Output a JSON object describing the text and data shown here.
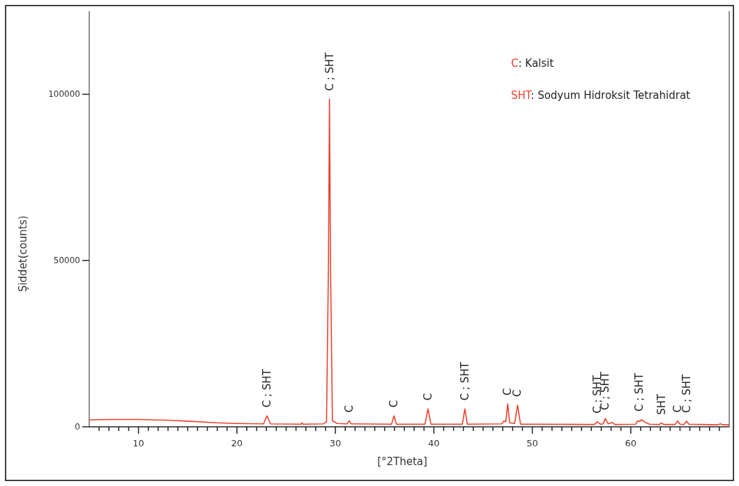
{
  "chart_data": {
    "type": "line",
    "xlabel": "[°2Theta]",
    "ylabel": "Şiddet(counts)",
    "xlim": [
      5,
      70
    ],
    "ylim": [
      0,
      125000
    ],
    "xticks": [
      {
        "value": 6,
        "label": null
      },
      {
        "value": 7,
        "label": null
      },
      {
        "value": 8,
        "label": null
      },
      {
        "value": 9,
        "label": null
      },
      10,
      {
        "value": 11,
        "label": null
      },
      {
        "value": 12,
        "label": null
      },
      {
        "value": 13,
        "label": null
      },
      {
        "value": 14,
        "label": null
      },
      {
        "value": 15,
        "label": null
      },
      {
        "value": 16,
        "label": null
      },
      {
        "value": 17,
        "label": null
      },
      {
        "value": 18,
        "label": null
      },
      {
        "value": 19,
        "label": null
      },
      20,
      {
        "value": 21,
        "label": null
      },
      {
        "value": 22,
        "label": null
      },
      {
        "value": 23,
        "label": null
      },
      {
        "value": 24,
        "label": null
      },
      {
        "value": 25,
        "label": null
      },
      {
        "value": 26,
        "label": null
      },
      {
        "value": 27,
        "label": null
      },
      {
        "value": 28,
        "label": null
      },
      {
        "value": 29,
        "label": null
      },
      30,
      {
        "value": 31,
        "label": null
      },
      {
        "value": 32,
        "label": null
      },
      {
        "value": 33,
        "label": null
      },
      {
        "value": 34,
        "label": null
      },
      {
        "value": 35,
        "label": null
      },
      {
        "value": 36,
        "label": null
      },
      {
        "value": 37,
        "label": null
      },
      {
        "value": 38,
        "label": null
      },
      {
        "value": 39,
        "label": null
      },
      40,
      {
        "value": 41,
        "label": null
      },
      {
        "value": 42,
        "label": null
      },
      {
        "value": 43,
        "label": null
      },
      {
        "value": 44,
        "label": null
      },
      {
        "value": 45,
        "label": null
      },
      {
        "value": 46,
        "label": null
      },
      {
        "value": 47,
        "label": null
      },
      {
        "value": 48,
        "label": null
      },
      {
        "value": 49,
        "label": null
      },
      50,
      {
        "value": 51,
        "label": null
      },
      {
        "value": 52,
        "label": null
      },
      {
        "value": 53,
        "label": null
      },
      {
        "value": 54,
        "label": null
      },
      {
        "value": 55,
        "label": null
      },
      {
        "value": 56,
        "label": null
      },
      {
        "value": 57,
        "label": null
      },
      {
        "value": 58,
        "label": null
      },
      {
        "value": 59,
        "label": null
      },
      60,
      {
        "value": 61,
        "label": null
      },
      {
        "value": 62,
        "label": null
      },
      {
        "value": 63,
        "label": null
      },
      {
        "value": 64,
        "label": null
      },
      {
        "value": 65,
        "label": null
      },
      {
        "value": 66,
        "label": null
      },
      {
        "value": 67,
        "label": null
      },
      {
        "value": 68,
        "label": null
      },
      {
        "value": 69,
        "label": null
      }
    ],
    "yticks": [
      0,
      50000,
      100000
    ],
    "grid": false,
    "marker": "none",
    "line_style": "solid",
    "series": [
      {
        "color": "#e8412c",
        "x": [
          5,
          7,
          10,
          13,
          15,
          18,
          20,
          22.7,
          23.05,
          23.4,
          26.5,
          26.6,
          26.7,
          28.8,
          29.1,
          29.3,
          29.4,
          29.5,
          29.7,
          30.2,
          31.2,
          31.4,
          31.6,
          35.7,
          35.95,
          36.2,
          39.1,
          39.4,
          39.7,
          42.9,
          43.15,
          43.4,
          46.9,
          47.1,
          47.3,
          47.5,
          47.7,
          48.2,
          48.5,
          48.8,
          56.3,
          56.6,
          56.9,
          57.2,
          57.4,
          57.7,
          58.1,
          58.4,
          60.5,
          60.7,
          60.9,
          61.1,
          61.5,
          61.9,
          62.9,
          63.1,
          63.4,
          64.5,
          64.75,
          65.0,
          65.4,
          65.65,
          65.9,
          68.8,
          69.1,
          69.4,
          70
        ],
        "values": [
          2100,
          2200,
          2200,
          2000,
          1700,
          1200,
          1000,
          900,
          3300,
          900,
          800,
          1200,
          800,
          900,
          1500,
          50000,
          98500,
          50000,
          1800,
          1000,
          900,
          1800,
          900,
          800,
          3300,
          800,
          800,
          5400,
          800,
          800,
          5400,
          800,
          900,
          1700,
          1500,
          6900,
          1200,
          1000,
          6500,
          800,
          700,
          1500,
          800,
          900,
          2500,
          900,
          1300,
          700,
          800,
          1800,
          1600,
          2100,
          1300,
          800,
          700,
          1100,
          700,
          700,
          1800,
          800,
          700,
          1700,
          800,
          600,
          900,
          600,
          600
        ]
      }
    ],
    "annotations": [
      {
        "text": "C ; SHT",
        "x": 23.05,
        "y": 3300
      },
      {
        "text": "C ; SHT",
        "x": 29.4,
        "y": 98500
      },
      {
        "text": "C",
        "x": 31.4,
        "y": 1800
      },
      {
        "text": "C",
        "x": 35.95,
        "y": 3300
      },
      {
        "text": "C",
        "x": 39.4,
        "y": 5400
      },
      {
        "text": "C ; SHT",
        "x": 43.15,
        "y": 5400
      },
      {
        "text": "C",
        "x": 47.5,
        "y": 6900
      },
      {
        "text": "C",
        "x": 48.5,
        "y": 6500
      },
      {
        "text": "C ; SHT",
        "x": 56.6,
        "y": 1500
      },
      {
        "text": "C ; SHT",
        "x": 57.4,
        "y": 2500
      },
      {
        "text": "C ; SHT",
        "x": 60.9,
        "y": 2100
      },
      {
        "text": "SHT",
        "x": 63.1,
        "y": 1100
      },
      {
        "text": "C",
        "x": 64.75,
        "y": 1800
      },
      {
        "text": "C ; SHT",
        "x": 65.65,
        "y": 1700
      },
      "C: Kalsit",
      "SHT: Sodyum Hidroksit Tetrahidrat"
    ]
  }
}
